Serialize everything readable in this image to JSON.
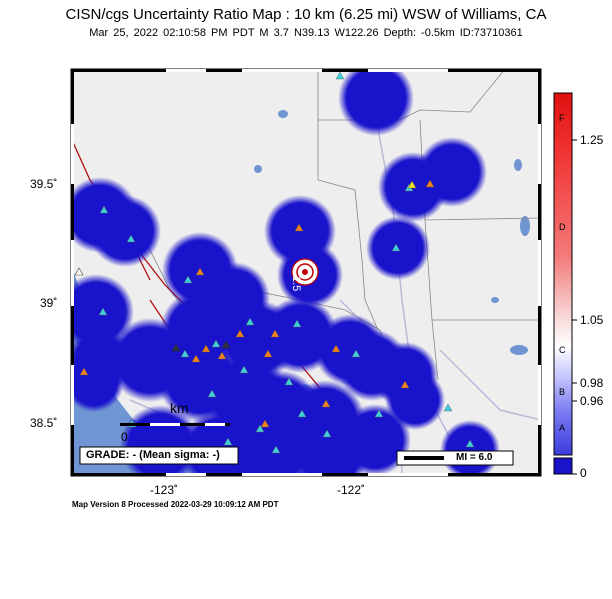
{
  "title": "CISN/cgs Uncertainty Ratio Map : 10 km (6.25 mi) WSW of Williams, CA",
  "subtitle": "Mar 25, 2022 02:10:58 PM PDT    M 3.7    N39.13 W122.26    Depth: -0.5km    ID:73710361",
  "footer": "Map Version 8 Processed 2022-03-29 10:09:12 AM PDT",
  "axes": {
    "lat_ticks": [
      "39.5˚",
      "39˚",
      "38.5˚"
    ],
    "lon_ticks": [
      "-123˚",
      "-122˚"
    ]
  },
  "colorbar": {
    "ticks": [
      "1.25",
      "1.05",
      "0.98",
      "0.96",
      "0"
    ],
    "letters": [
      "F",
      "D",
      "C",
      "B",
      "A"
    ]
  },
  "legend": {
    "grade": "GRADE: - (Mean sigma: -)",
    "scalebar_unit": "km",
    "scalebar_zero": "0",
    "mi_label": "MI = 6.0"
  },
  "epicenter_label": "1.5",
  "colors": {
    "ocean": "#6f95d2",
    "land": "#eeeeee",
    "uncertainty_blue": "#1a13cc",
    "colorbar_red": "#e02020",
    "station_cyan": "#3ecfd8",
    "station_orange": "#f08020",
    "fault_red": "#b01010"
  }
}
